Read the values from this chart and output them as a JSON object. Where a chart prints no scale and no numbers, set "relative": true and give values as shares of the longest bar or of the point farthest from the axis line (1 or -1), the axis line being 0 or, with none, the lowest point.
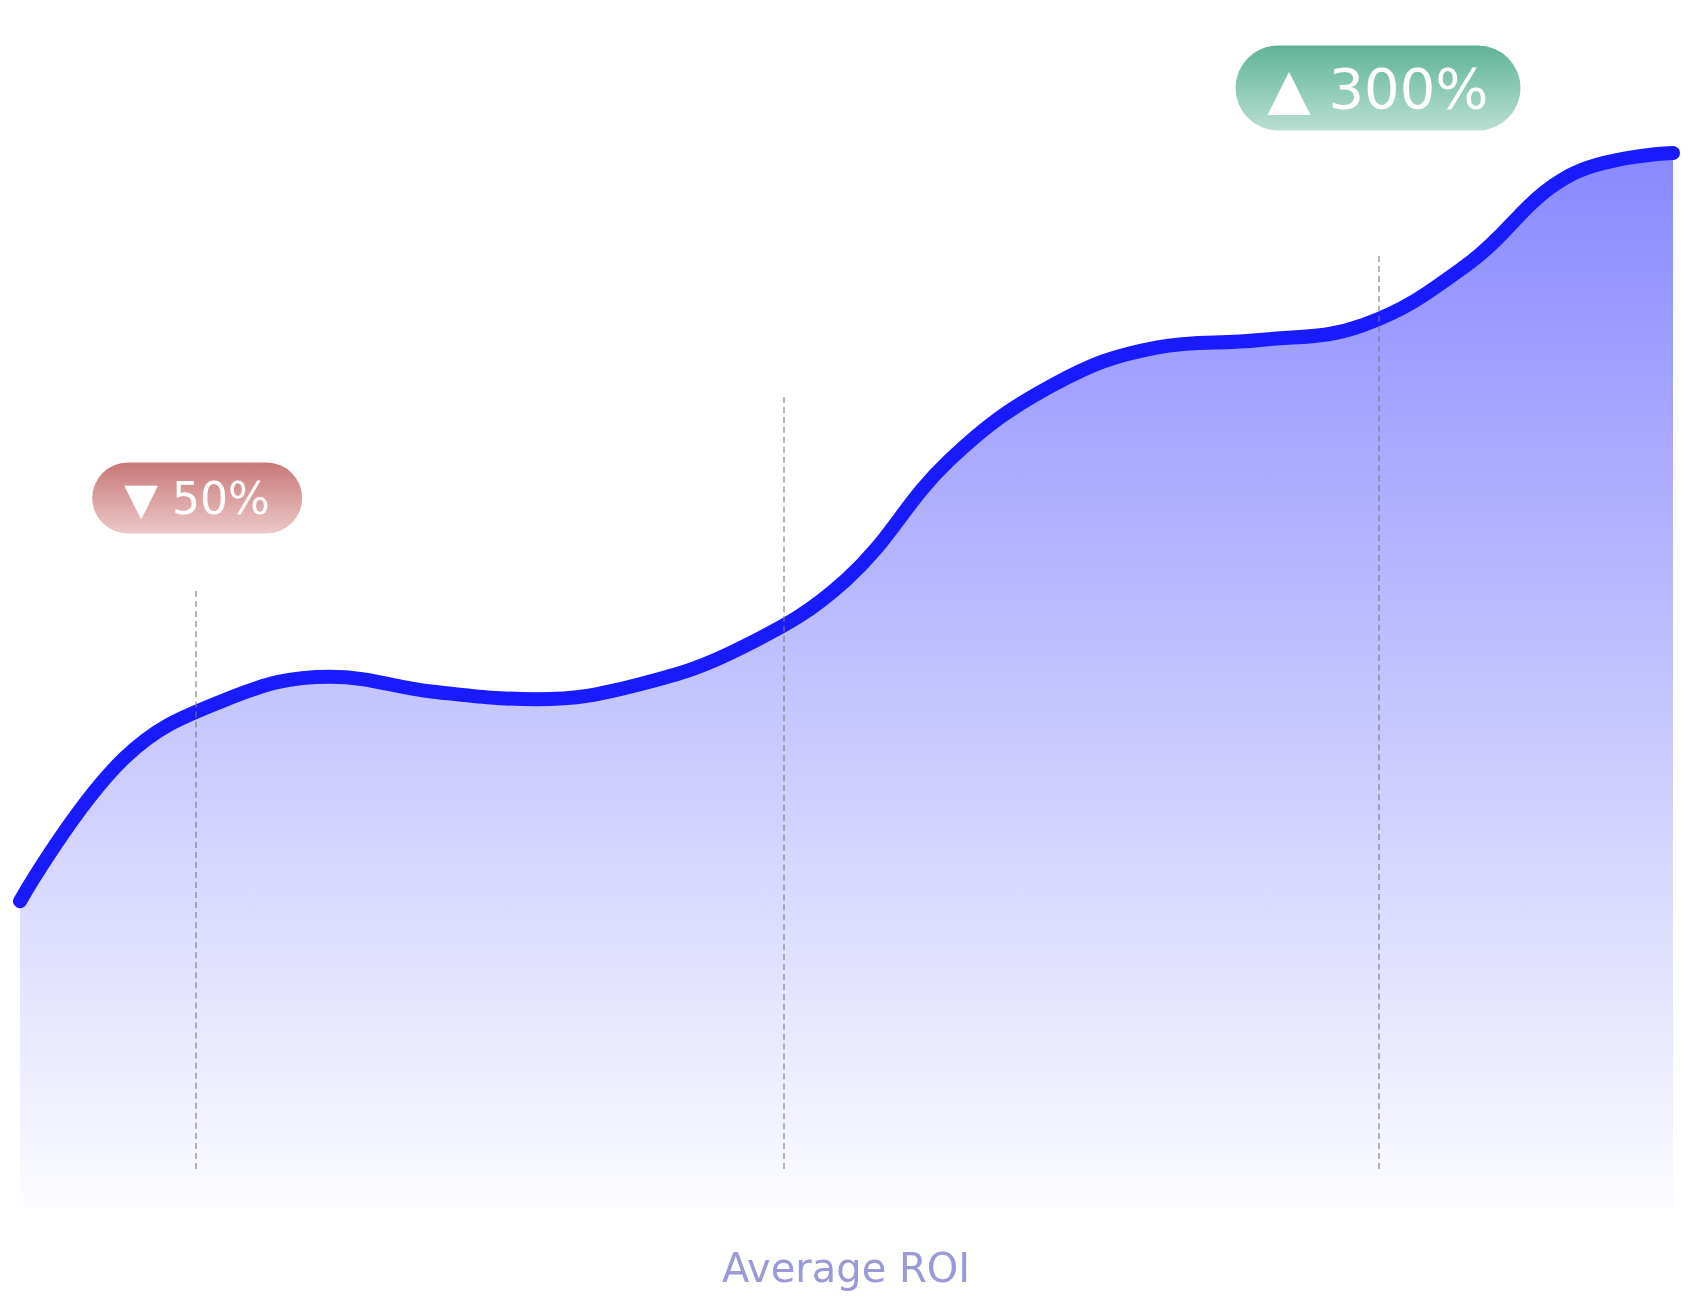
{
  "chart_data": {
    "type": "area",
    "relative": true,
    "categories": [
      null,
      null,
      null,
      null,
      null,
      null,
      null,
      null,
      null,
      null,
      null,
      null,
      null,
      null,
      null,
      null,
      null
    ],
    "grid": false,
    "series": [
      {
        "color": "#1a1aff",
        "values": [
          0,
          0.19,
          0.27,
          0.3,
          0.28,
          0.27,
          0.29,
          0.34,
          0.43,
          0.59,
          0.69,
          0.74,
          0.75,
          0.77,
          0.85,
          0.97,
          1
        ]
      }
    ],
    "annotations": [
      "▼ 50%",
      "▲ 300%",
      "Average ROI"
    ]
  }
}
